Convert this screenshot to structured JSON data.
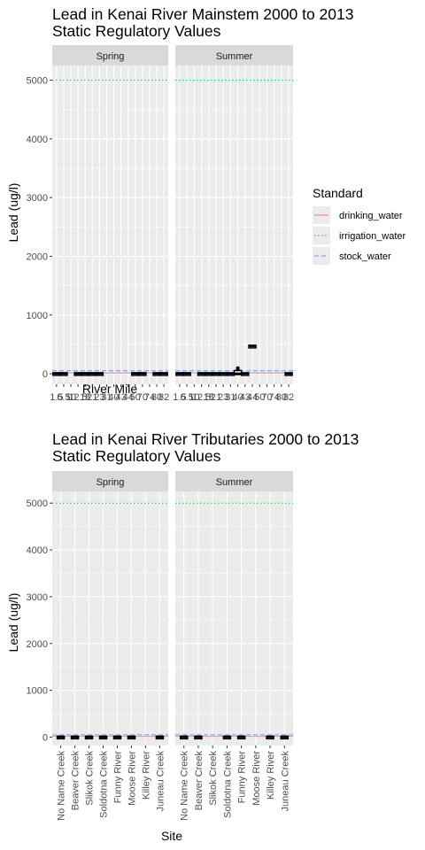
{
  "chart_data": [
    {
      "type": "boxplot",
      "title_line1": "Lead in Kenai River Mainstem  2000 to 2013",
      "title_line2": "Static Regulatory Values",
      "xlabel": "River Mile",
      "ylabel": "Lead (ug/l)",
      "ylim": [
        -180,
        5250
      ],
      "yticks": [
        0,
        1000,
        2000,
        3000,
        4000,
        5000
      ],
      "grid": true,
      "x_categories": [
        "1.5",
        "6.5",
        "10",
        "12.5",
        "18",
        "21",
        "23",
        "31",
        "40",
        "43",
        "44",
        "50",
        "70",
        "74",
        "80",
        "82"
      ],
      "x_tick_labels": [
        "1.5",
        "6.5",
        "10",
        "12.5",
        "18",
        "21",
        "23",
        "31",
        "40",
        "43",
        "44",
        "50",
        "70",
        "74",
        "80",
        "82"
      ],
      "facets": [
        {
          "name": "Spring",
          "series": [
            {
              "x": "1.5",
              "min": 0,
              "q1": 0,
              "median": 0,
              "q3": 2,
              "max": 4,
              "outliers": []
            },
            {
              "x": "6.5",
              "min": 0,
              "q1": 0,
              "median": 0,
              "q3": 2,
              "max": 4,
              "outliers": []
            },
            {
              "x": "12.5",
              "min": 0,
              "q1": 0,
              "median": 0,
              "q3": 2,
              "max": 4,
              "outliers": []
            },
            {
              "x": "18",
              "min": 0,
              "q1": 0,
              "median": 0,
              "q3": 2,
              "max": 4,
              "outliers": []
            },
            {
              "x": "21",
              "min": 0,
              "q1": 0,
              "median": 0,
              "q3": 2,
              "max": 4,
              "outliers": []
            },
            {
              "x": "23",
              "min": 0,
              "q1": 0,
              "median": 0,
              "q3": 2,
              "max": 4,
              "outliers": []
            },
            {
              "x": "50",
              "min": 0,
              "q1": 0,
              "median": 0,
              "q3": 2,
              "max": 4,
              "outliers": []
            },
            {
              "x": "70",
              "min": 0,
              "q1": 0,
              "median": 0,
              "q3": 2,
              "max": 4,
              "outliers": []
            },
            {
              "x": "80",
              "min": 0,
              "q1": 0,
              "median": 0,
              "q3": 2,
              "max": 4,
              "outliers": []
            },
            {
              "x": "82",
              "min": 0,
              "q1": 0,
              "median": 0,
              "q3": 2,
              "max": 4,
              "outliers": []
            }
          ]
        },
        {
          "name": "Summer",
          "series": [
            {
              "x": "1.5",
              "min": 0,
              "q1": 0,
              "median": 0,
              "q3": 2,
              "max": 4,
              "outliers": []
            },
            {
              "x": "6.5",
              "min": 0,
              "q1": 0,
              "median": 0,
              "q3": 2,
              "max": 4,
              "outliers": []
            },
            {
              "x": "12.5",
              "min": 0,
              "q1": 0,
              "median": 0,
              "q3": 2,
              "max": 4,
              "outliers": []
            },
            {
              "x": "18",
              "min": 0,
              "q1": 0,
              "median": 0,
              "q3": 2,
              "max": 4,
              "outliers": []
            },
            {
              "x": "21",
              "min": 0,
              "q1": 0,
              "median": 0,
              "q3": 2,
              "max": 4,
              "outliers": []
            },
            {
              "x": "23",
              "min": 0,
              "q1": 0,
              "median": 0,
              "q3": 2,
              "max": 4,
              "outliers": []
            },
            {
              "x": "31",
              "min": 0,
              "q1": 0,
              "median": 0,
              "q3": 2,
              "max": 4,
              "outliers": []
            },
            {
              "x": "40",
              "min": 0,
              "q1": 0,
              "median": 5,
              "q3": 40,
              "max": 60,
              "outliers": [
                95,
                70
              ]
            },
            {
              "x": "43",
              "min": 0,
              "q1": 0,
              "median": 0,
              "q3": 2,
              "max": 4,
              "outliers": []
            },
            {
              "x": "44",
              "min": 470,
              "q1": 470,
              "median": 470,
              "q3": 470,
              "max": 470,
              "outliers": []
            },
            {
              "x": "82",
              "min": 0,
              "q1": 0,
              "median": 0,
              "q3": 2,
              "max": 4,
              "outliers": []
            }
          ]
        }
      ]
    },
    {
      "type": "boxplot",
      "title_line1": "Lead in Kenai River Tributaries  2000 to 2013",
      "title_line2": "Static Regulatory Values",
      "xlabel": "Site",
      "ylabel": "Lead (ug/l)",
      "ylim": [
        -180,
        5250
      ],
      "yticks": [
        0,
        1000,
        2000,
        3000,
        4000,
        5000
      ],
      "grid": true,
      "x_categories": [
        "No Name Creek",
        "Beaver Creek",
        "Slikok Creek",
        "Soldotna Creek",
        "Funny River",
        "Moose River",
        "Killey River",
        "Juneau Creek"
      ],
      "x_tick_labels": [
        "No Name Creek",
        "Beaver Creek",
        "Slikok Creek",
        "Soldotna Creek",
        "Funny River",
        "Moose River",
        "Killey River",
        "Juneau Creek"
      ],
      "facets": [
        {
          "name": "Spring",
          "series": [
            {
              "x": "No Name Creek",
              "min": 0,
              "q1": 0,
              "median": 0,
              "q3": 2,
              "max": 4,
              "outliers": []
            },
            {
              "x": "Beaver Creek",
              "min": 0,
              "q1": 0,
              "median": 0,
              "q3": 2,
              "max": 4,
              "outliers": []
            },
            {
              "x": "Slikok Creek",
              "min": 0,
              "q1": 0,
              "median": 0,
              "q3": 2,
              "max": 4,
              "outliers": []
            },
            {
              "x": "Soldotna Creek",
              "min": 0,
              "q1": 0,
              "median": 0,
              "q3": 2,
              "max": 4,
              "outliers": []
            },
            {
              "x": "Funny River",
              "min": 0,
              "q1": 0,
              "median": 0,
              "q3": 2,
              "max": 4,
              "outliers": []
            },
            {
              "x": "Moose River",
              "min": 0,
              "q1": 0,
              "median": 0,
              "q3": 2,
              "max": 4,
              "outliers": []
            },
            {
              "x": "Juneau Creek",
              "min": 0,
              "q1": 0,
              "median": 0,
              "q3": 2,
              "max": 4,
              "outliers": []
            }
          ]
        },
        {
          "name": "Summer",
          "series": [
            {
              "x": "No Name Creek",
              "min": 0,
              "q1": 0,
              "median": 0,
              "q3": 2,
              "max": 4,
              "outliers": []
            },
            {
              "x": "Beaver Creek",
              "min": 0,
              "q1": 0,
              "median": 0,
              "q3": 2,
              "max": 4,
              "outliers": []
            },
            {
              "x": "Soldotna Creek",
              "min": 0,
              "q1": 0,
              "median": 0,
              "q3": 2,
              "max": 4,
              "outliers": []
            },
            {
              "x": "Funny River",
              "min": 0,
              "q1": 0,
              "median": 0,
              "q3": 2,
              "max": 4,
              "outliers": []
            },
            {
              "x": "Killey River",
              "min": 0,
              "q1": 0,
              "median": 0,
              "q3": 2,
              "max": 4,
              "outliers": []
            },
            {
              "x": "Juneau Creek",
              "min": 0,
              "q1": 0,
              "median": 0,
              "q3": 2,
              "max": 4,
              "outliers": []
            }
          ]
        }
      ]
    }
  ],
  "standards": [
    {
      "name": "drinking_water",
      "value": 15,
      "color": "#F8766D",
      "dash": "solid"
    },
    {
      "name": "irrigation_water",
      "value": 5000,
      "color": "#00BA38",
      "dash": "dotted"
    },
    {
      "name": "stock_water",
      "value": 50,
      "color": "#619CFF",
      "dash": "dashed"
    }
  ],
  "legend": {
    "title": "Standard",
    "placement": "right",
    "items": [
      "drinking_water",
      "irrigation_water",
      "stock_water"
    ]
  },
  "colors": {
    "panel_bg": "#EBEBEB",
    "strip_bg": "#D9D9D9",
    "grid": "#FFFFFF",
    "tick_text": "#4D4D4D",
    "strip_text": "#1A1A1A"
  }
}
